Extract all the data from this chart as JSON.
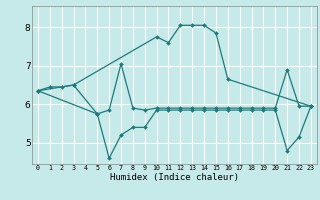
{
  "xlabel": "Humidex (Indice chaleur)",
  "bg_color": "#c6e9e9",
  "grid_color": "#ffffff",
  "line_color": "#1e7b7b",
  "xlim": [
    -0.5,
    23.5
  ],
  "ylim": [
    4.45,
    8.55
  ],
  "xticks": [
    0,
    1,
    2,
    3,
    4,
    5,
    6,
    7,
    8,
    9,
    10,
    11,
    12,
    13,
    14,
    15,
    16,
    17,
    18,
    19,
    20,
    21,
    22,
    23
  ],
  "yticks": [
    5,
    6,
    7,
    8
  ],
  "series": [
    {
      "x": [
        0,
        1,
        2,
        3,
        10,
        11,
        12,
        13,
        14,
        15,
        16,
        23
      ],
      "y": [
        6.35,
        6.45,
        6.45,
        6.5,
        7.75,
        7.6,
        8.05,
        8.05,
        8.05,
        7.85,
        6.65,
        5.95
      ]
    },
    {
      "x": [
        0,
        3,
        5,
        6,
        7,
        8,
        9,
        10,
        11,
        12,
        13,
        14,
        15,
        16,
        17,
        18,
        19,
        20,
        21,
        22,
        23
      ],
      "y": [
        6.35,
        6.5,
        5.75,
        5.85,
        7.05,
        5.9,
        5.85,
        5.9,
        5.9,
        5.9,
        5.9,
        5.9,
        5.9,
        5.9,
        5.9,
        5.9,
        5.9,
        5.9,
        6.9,
        5.95,
        5.95
      ]
    },
    {
      "x": [
        0,
        5,
        6,
        7,
        8,
        9,
        10,
        11,
        12,
        13,
        14,
        15,
        16,
        17,
        18,
        19,
        20,
        21,
        22,
        23
      ],
      "y": [
        6.35,
        5.75,
        4.6,
        5.2,
        5.4,
        5.4,
        5.85,
        5.85,
        5.85,
        5.85,
        5.85,
        5.85,
        5.85,
        5.85,
        5.85,
        5.85,
        5.85,
        4.8,
        5.15,
        5.95
      ]
    }
  ]
}
